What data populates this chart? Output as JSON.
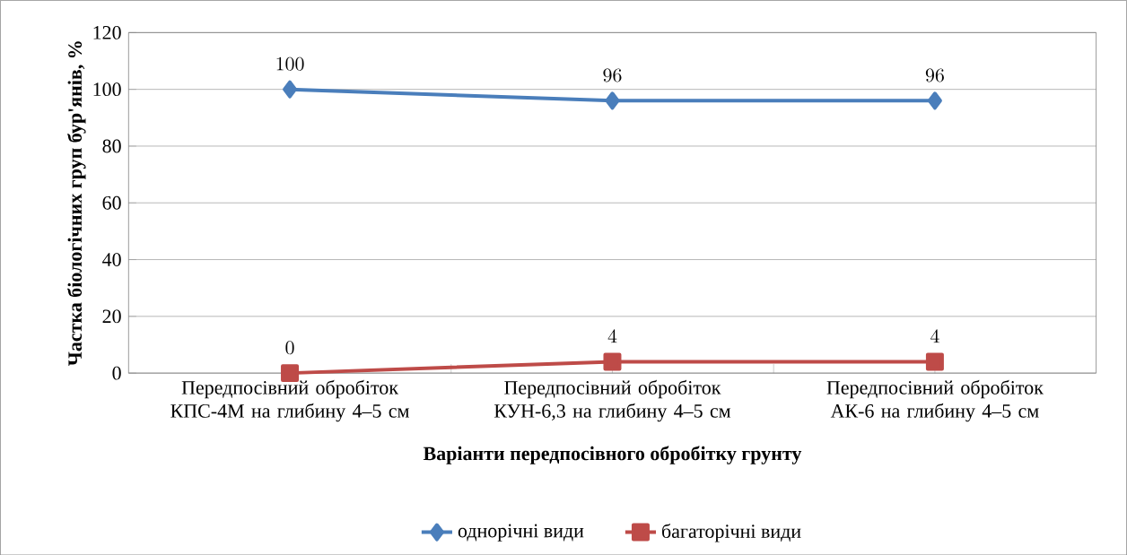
{
  "chart_data": {
    "type": "line",
    "xlabel": "Варіанти передпосівного обробітку грунту",
    "ylabel": "Частка біологічних груп бур'янів, %",
    "categories": [
      "Передпосівний обробіток КПС-4М на глибину 4–5 см",
      "Передпосівний обробіток КУН-6,3 на глибину 4–5 см",
      "Передпосівний обробіток АК-6 на глибину 4–5 см"
    ],
    "series": [
      {
        "name": "однорічні види",
        "color": "#4a7ebb",
        "marker": "diamond",
        "values": [
          100,
          96,
          96
        ]
      },
      {
        "name": "багаторічні види",
        "color": "#be4b48",
        "marker": "square",
        "values": [
          0,
          4,
          4
        ]
      }
    ],
    "ylim": [
      0,
      120
    ],
    "yticks": [
      0,
      20,
      40,
      60,
      80,
      100,
      120
    ],
    "grid": "y",
    "legend": "bottom",
    "data_labels": true,
    "line_style": "solid"
  }
}
